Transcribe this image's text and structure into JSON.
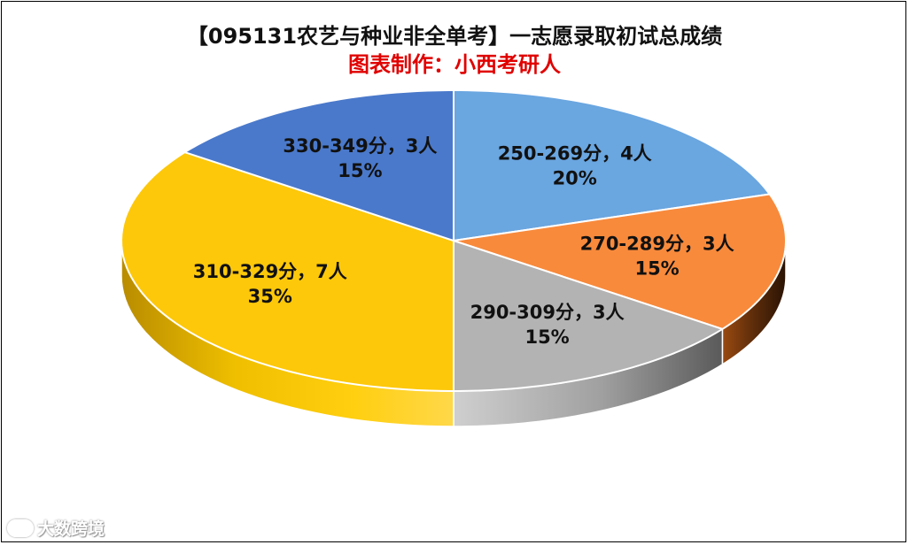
{
  "title": "【095131农艺与种业非全单考】一志愿录取初试总成绩",
  "subtitle": "图表制作：小西考研人",
  "watermark": "大数跨境",
  "chart_data": {
    "type": "pie",
    "style": "3d",
    "legend": "none",
    "slices": [
      {
        "label": "250-269分",
        "count": 4,
        "unit": "人",
        "percent": "20%",
        "value": 20,
        "color": "#6aa6e0"
      },
      {
        "label": "270-289分",
        "count": 3,
        "unit": "人",
        "percent": "15%",
        "value": 15,
        "color": "#f88a3c"
      },
      {
        "label": "290-309分",
        "count": 3,
        "unit": "人",
        "percent": "15%",
        "value": 15,
        "color": "#b3b3b3"
      },
      {
        "label": "310-329分",
        "count": 7,
        "unit": "人",
        "percent": "35%",
        "value": 35,
        "color": "#fdc80a"
      },
      {
        "label": "330-349分",
        "count": 3,
        "unit": "人",
        "percent": "15%",
        "value": 15,
        "color": "#4a79cb"
      }
    ]
  },
  "colors": {
    "title": "#111111",
    "subtitle": "#e00000",
    "side_orange_dark": "#4a2207",
    "side_gray_dark": "#5a5a5a",
    "side_yellow": "#e6b000"
  }
}
